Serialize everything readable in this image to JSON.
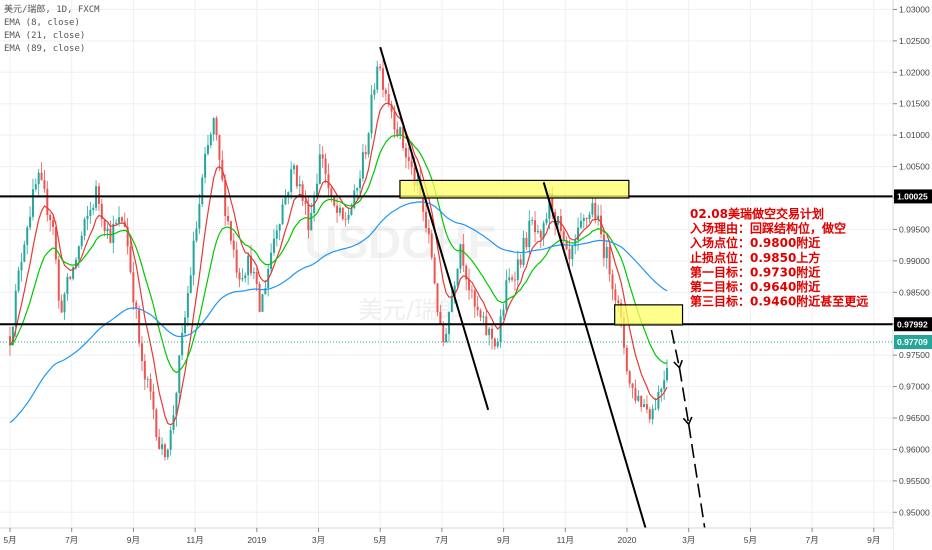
{
  "header": {
    "title": "美元/瑞郎, 1D, FXCM",
    "indicators": [
      "EMA (8, close)",
      "EMA (21, close)",
      "EMA (89, close)"
    ]
  },
  "watermark": {
    "symbol": "USDCHF",
    "name": "美元/瑞郎"
  },
  "colors": {
    "up": "#26a69a",
    "down": "#ef5350",
    "ema8": "#e53935",
    "ema21": "#00c800",
    "ema89": "#2196f3",
    "level": "#000000",
    "zone": "#ffff66",
    "plan": "#e00000",
    "current": "#26a69a"
  },
  "plan": {
    "lines": [
      "02.08美瑞做空交易计划",
      "入场理由：回踩结构位，做空",
      "入场点位：0.9800附近",
      "止损点位：0.9850上方",
      "第一目标：0.9730附近",
      "第二目标：0.9640附近",
      "第三目标：0.9460附近甚至更远"
    ]
  },
  "chart_data": {
    "type": "candlestick",
    "instrument": "美元/瑞郎",
    "timeframe": "1D",
    "source": "FXCM",
    "x_ticks": [
      "5月",
      "7月",
      "9月",
      "11月",
      "2019",
      "3月",
      "5月",
      "7月",
      "9月",
      "11月",
      "2020",
      "3月",
      "5月",
      "7月",
      "9月"
    ],
    "y_ticks": [
      "0.95000",
      "0.95500",
      "0.96000",
      "0.96500",
      "0.97000",
      "0.97500",
      "0.98000",
      "0.98500",
      "0.99000",
      "0.99500",
      "1.00000",
      "1.00500",
      "1.01000",
      "1.01500",
      "1.02000",
      "1.02500",
      "1.03000"
    ],
    "ylim": [
      0.9475,
      1.0315
    ],
    "xlim": [
      0,
      15
    ],
    "price_labels": [
      {
        "text": "1.00025",
        "value": 1.00025,
        "style": "level"
      },
      {
        "text": "0.97992",
        "value": 0.97992,
        "style": "level"
      },
      {
        "text": "0.97709",
        "value": 0.97709,
        "style": "current"
      }
    ],
    "horizontal_levels": [
      1.00025,
      0.97992
    ],
    "current_price": 0.97709,
    "zones": [
      {
        "x0": 6.32,
        "x1": 10.03,
        "y0": 1.0,
        "y1": 1.0028
      },
      {
        "x0": 9.8,
        "x1": 10.9,
        "y0": 0.9798,
        "y1": 0.983
      }
    ],
    "trendlines": [
      {
        "x0": 6.0,
        "y0": 1.024,
        "x1": 7.75,
        "y1": 0.9663
      },
      {
        "x0": 8.65,
        "y0": 1.0025,
        "x1": 10.3,
        "y1": 0.9475
      }
    ],
    "projection": [
      {
        "x": 10.72,
        "y": 0.979
      },
      {
        "x": 10.85,
        "y": 0.973
      },
      {
        "x": 11.0,
        "y": 0.964
      },
      {
        "x": 11.28,
        "y": 0.9462
      }
    ],
    "ema_periods": [
      8,
      21,
      89
    ],
    "price_path": [
      [
        0.0,
        0.978
      ],
      [
        0.25,
        0.995
      ],
      [
        0.45,
        1.003
      ],
      [
        0.7,
        0.996
      ],
      [
        0.8,
        0.982
      ],
      [
        1.0,
        0.988
      ],
      [
        1.2,
        0.995
      ],
      [
        1.4,
        1.001
      ],
      [
        1.6,
        0.994
      ],
      [
        1.85,
        0.997
      ],
      [
        2.0,
        0.985
      ],
      [
        2.15,
        0.972
      ],
      [
        2.3,
        0.968
      ],
      [
        2.45,
        0.959
      ],
      [
        2.6,
        0.962
      ],
      [
        2.8,
        0.978
      ],
      [
        2.95,
        0.99
      ],
      [
        3.15,
        1.005
      ],
      [
        3.3,
        1.012
      ],
      [
        3.5,
        0.998
      ],
      [
        3.7,
        0.988
      ],
      [
        3.9,
        0.99
      ],
      [
        4.05,
        0.982
      ],
      [
        4.3,
        0.995
      ],
      [
        4.6,
        1.005
      ],
      [
        4.85,
        0.996
      ],
      [
        5.05,
        1.008
      ],
      [
        5.2,
        0.999
      ],
      [
        5.4,
        0.996
      ],
      [
        5.6,
        1.0
      ],
      [
        5.8,
        1.01
      ],
      [
        5.95,
        1.022
      ],
      [
        6.1,
        1.017
      ],
      [
        6.25,
        1.012
      ],
      [
        6.45,
        1.006
      ],
      [
        6.65,
        1.0
      ],
      [
        6.85,
        0.99
      ],
      [
        7.0,
        0.976
      ],
      [
        7.15,
        0.984
      ],
      [
        7.3,
        0.993
      ],
      [
        7.5,
        0.983
      ],
      [
        7.7,
        0.979
      ],
      [
        7.9,
        0.977
      ],
      [
        8.05,
        0.986
      ],
      [
        8.25,
        0.99
      ],
      [
        8.45,
        0.996
      ],
      [
        8.6,
        0.992
      ],
      [
        8.75,
        1.0
      ],
      [
        8.9,
        0.995
      ],
      [
        9.05,
        0.989
      ],
      [
        9.25,
        0.995
      ],
      [
        9.45,
        0.999
      ],
      [
        9.6,
        0.993
      ],
      [
        9.75,
        0.988
      ],
      [
        9.9,
        0.98
      ],
      [
        10.05,
        0.97
      ],
      [
        10.2,
        0.968
      ],
      [
        10.4,
        0.966
      ],
      [
        10.55,
        0.97
      ],
      [
        10.65,
        0.974
      ]
    ]
  }
}
